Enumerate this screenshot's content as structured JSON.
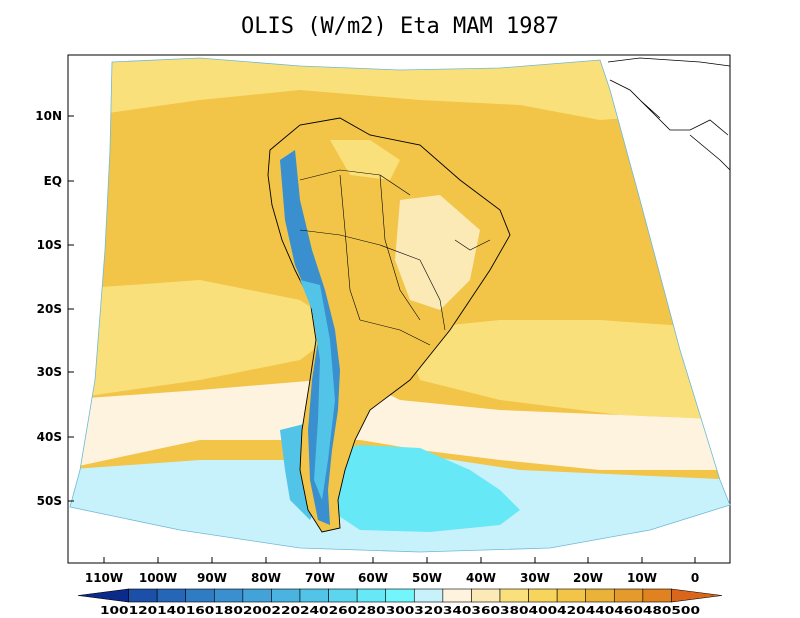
{
  "title": "OLIS (W/m2) Eta MAM 1987",
  "map": {
    "lat_ticks": [
      "10N",
      "EQ",
      "10S",
      "20S",
      "30S",
      "40S",
      "50S"
    ],
    "lon_ticks": [
      "110W",
      "100W",
      "90W",
      "80W",
      "70W",
      "60W",
      "50W",
      "40W",
      "30W",
      "20W",
      "10W",
      "0"
    ]
  },
  "colorbar": {
    "levels": [
      "100",
      "120",
      "140",
      "160",
      "180",
      "200",
      "220",
      "240",
      "260",
      "280",
      "300",
      "320",
      "340",
      "360",
      "380",
      "400",
      "420",
      "440",
      "460",
      "480",
      "500"
    ],
    "colors": [
      "#0b2a8a",
      "#1b4fa8",
      "#2566b8",
      "#2f7cc3",
      "#3a8fce",
      "#43a2d8",
      "#4ab3e0",
      "#52c4e8",
      "#5cd6ef",
      "#66e8f7",
      "#72f5fb",
      "#c8f2fb",
      "#fdf3de",
      "#fbeab6",
      "#fae07a",
      "#f7d45c",
      "#f2c448",
      "#ebb23a",
      "#e59b2c",
      "#e0821f",
      "#d9661a"
    ],
    "text": "100120140160180200220240260280300320340360380400420440460480500"
  },
  "fill_colors": {
    "ocean_gold": "#f2c448",
    "ocean_light_gold": "#fae07a",
    "ocean_pale": "#fdf3de",
    "ocean_cyan_light": "#c8f2fb",
    "ocean_cyan": "#66e8f7",
    "andes_blue": "#3a8fce",
    "land_light": "#fbeab6"
  }
}
